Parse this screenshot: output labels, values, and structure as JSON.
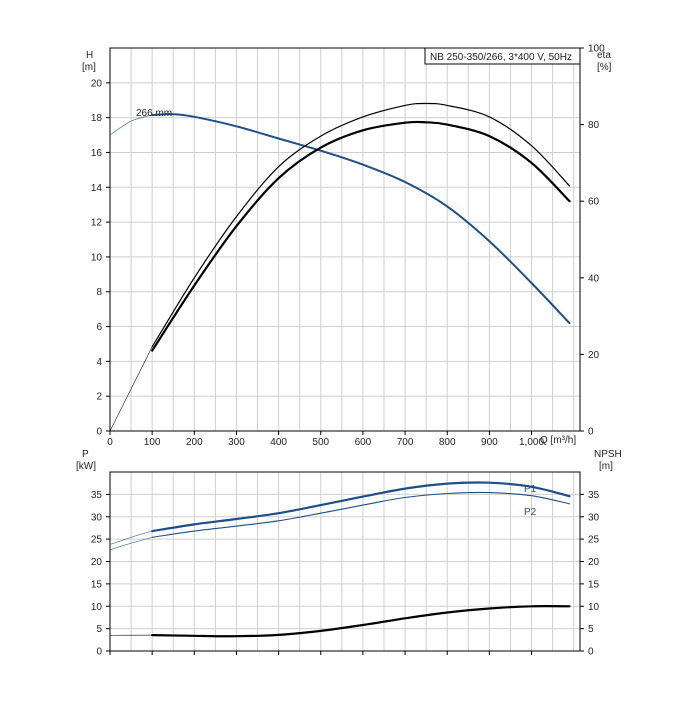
{
  "chart_data": [
    {
      "type": "line",
      "title": "NB 250-350/266, 3*400 V, 50Hz",
      "xlabel": "Q [m³/h]",
      "ylabel_left_name": "H",
      "ylabel_left_unit": "[m]",
      "ylabel_right_name": "eta",
      "ylabel_right_unit": "[%]",
      "xlim": [
        0,
        1115
      ],
      "ylim_left": [
        0,
        22
      ],
      "ylim_right": [
        0,
        100
      ],
      "x_ticks": [
        0,
        100,
        200,
        300,
        400,
        500,
        600,
        700,
        800,
        900,
        1000
      ],
      "x_tick_labels": [
        "0",
        "100",
        "200",
        "300",
        "400",
        "500",
        "600",
        "700",
        "800",
        "900",
        "1,000"
      ],
      "y_left_ticks": [
        0,
        2,
        4,
        6,
        8,
        10,
        12,
        14,
        16,
        18,
        20
      ],
      "y_right_ticks": [
        0,
        20,
        40,
        60,
        80,
        100
      ],
      "grid": true,
      "annotation": "266 mm",
      "series": [
        {
          "name": "266 mm",
          "axis": "left",
          "color": "#1d4e89",
          "x": [
            0,
            50,
            100,
            150,
            200,
            300,
            400,
            500,
            600,
            700,
            800,
            900,
            1000,
            1090
          ],
          "y": [
            17.0,
            17.8,
            18.15,
            18.2,
            18.05,
            17.5,
            16.8,
            16.1,
            15.3,
            14.3,
            12.9,
            10.9,
            8.5,
            6.2
          ],
          "thin_until": 100
        },
        {
          "axis": "right",
          "color": "#000000",
          "stroke": 1.2,
          "x": [
            0,
            100,
            200,
            300,
            400,
            500,
            600,
            700,
            750,
            800,
            900,
            1000,
            1090
          ],
          "y": [
            0,
            22,
            40,
            56,
            69,
            77,
            82,
            85,
            85.5,
            85,
            82,
            74.5,
            64
          ],
          "thin_until": 100
        },
        {
          "axis": "right",
          "color": "#000000",
          "stroke": 2.2,
          "x": [
            100,
            200,
            300,
            400,
            500,
            600,
            700,
            750,
            800,
            900,
            1000,
            1090
          ],
          "y": [
            21,
            38,
            53.5,
            66,
            74,
            78.5,
            80.5,
            80.6,
            80,
            77,
            70,
            60
          ]
        }
      ]
    },
    {
      "type": "line",
      "ylabel_left_name": "P",
      "ylabel_left_unit": "[kW]",
      "ylabel_right_name": "NPSH",
      "ylabel_right_unit": "[m]",
      "xlim": [
        0,
        1115
      ],
      "ylim_left": [
        0,
        40
      ],
      "ylim_right": [
        0,
        40
      ],
      "y_left_ticks": [
        0,
        5,
        10,
        15,
        20,
        25,
        30,
        35
      ],
      "y_right_ticks": [
        0,
        5,
        10,
        15,
        20,
        25,
        30,
        35
      ],
      "grid": true,
      "series": [
        {
          "name": "P1",
          "axis": "left",
          "color": "#1d4e89",
          "stroke": 2.2,
          "x": [
            0,
            50,
            100,
            200,
            300,
            400,
            500,
            600,
            700,
            800,
            900,
            1000,
            1090
          ],
          "y": [
            23.8,
            25.4,
            26.8,
            28.3,
            29.5,
            30.8,
            32.6,
            34.5,
            36.3,
            37.4,
            37.6,
            36.7,
            34.6
          ],
          "thin_until": 100
        },
        {
          "name": "P2",
          "axis": "left",
          "color": "#1d4e89",
          "stroke": 1.1,
          "x": [
            0,
            50,
            100,
            200,
            300,
            400,
            500,
            600,
            700,
            800,
            900,
            1000,
            1090
          ],
          "y": [
            22.6,
            24.1,
            25.4,
            26.8,
            27.9,
            29.1,
            30.8,
            32.6,
            34.3,
            35.2,
            35.4,
            34.7,
            32.9
          ],
          "thin_until": 100
        },
        {
          "axis": "right",
          "color": "#000000",
          "stroke": 2.2,
          "x": [
            0,
            100,
            200,
            300,
            400,
            500,
            600,
            700,
            800,
            900,
            1000,
            1090
          ],
          "y": [
            3.5,
            3.55,
            3.4,
            3.3,
            3.6,
            4.5,
            5.8,
            7.3,
            8.6,
            9.5,
            10.0,
            10.0
          ],
          "thin_until": 100
        }
      ]
    }
  ]
}
